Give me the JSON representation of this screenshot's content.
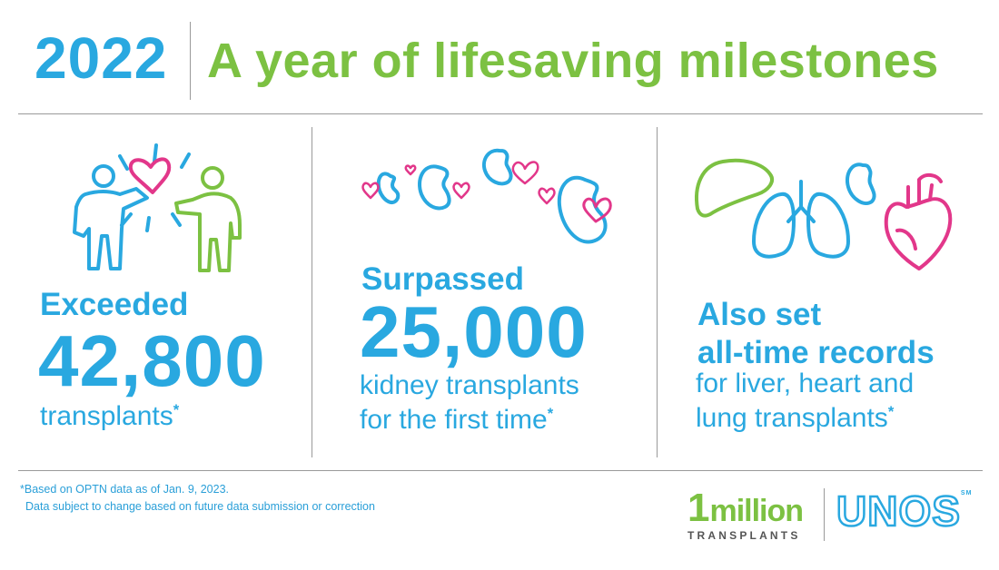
{
  "header": {
    "year": "2022",
    "headline": "A year of lifesaving milestones"
  },
  "stats": [
    {
      "lead": "Exceeded",
      "value": "42,800",
      "desc_lines": [
        "transplants"
      ],
      "asterisk": "*"
    },
    {
      "lead": "Surpassed",
      "value": "25,000",
      "desc_lines": [
        "kidney transplants",
        "for the first time"
      ],
      "asterisk": "*"
    },
    {
      "lead_lines": [
        "Also set",
        "all-time records"
      ],
      "desc_lines": [
        "for liver, heart and",
        "lung transplants"
      ],
      "asterisk": "*"
    }
  ],
  "footnote": {
    "line1": "*Based on OPTN data as of Jan. 9, 2023.",
    "line2": "Data subject to change based on future data submission or correction"
  },
  "logos": {
    "million_number": "1",
    "million_word": "million",
    "million_sub": "TRANSPLANTS",
    "unos": "UNOS",
    "unos_mark": "SM"
  },
  "icons": [
    "people-heart-icon",
    "kidneys-hearts-icon",
    "organs-icon"
  ],
  "colors": {
    "blue": "#29a8e0",
    "green": "#7cc142",
    "pink": "#e2378a",
    "rule": "#9a9a9a"
  }
}
